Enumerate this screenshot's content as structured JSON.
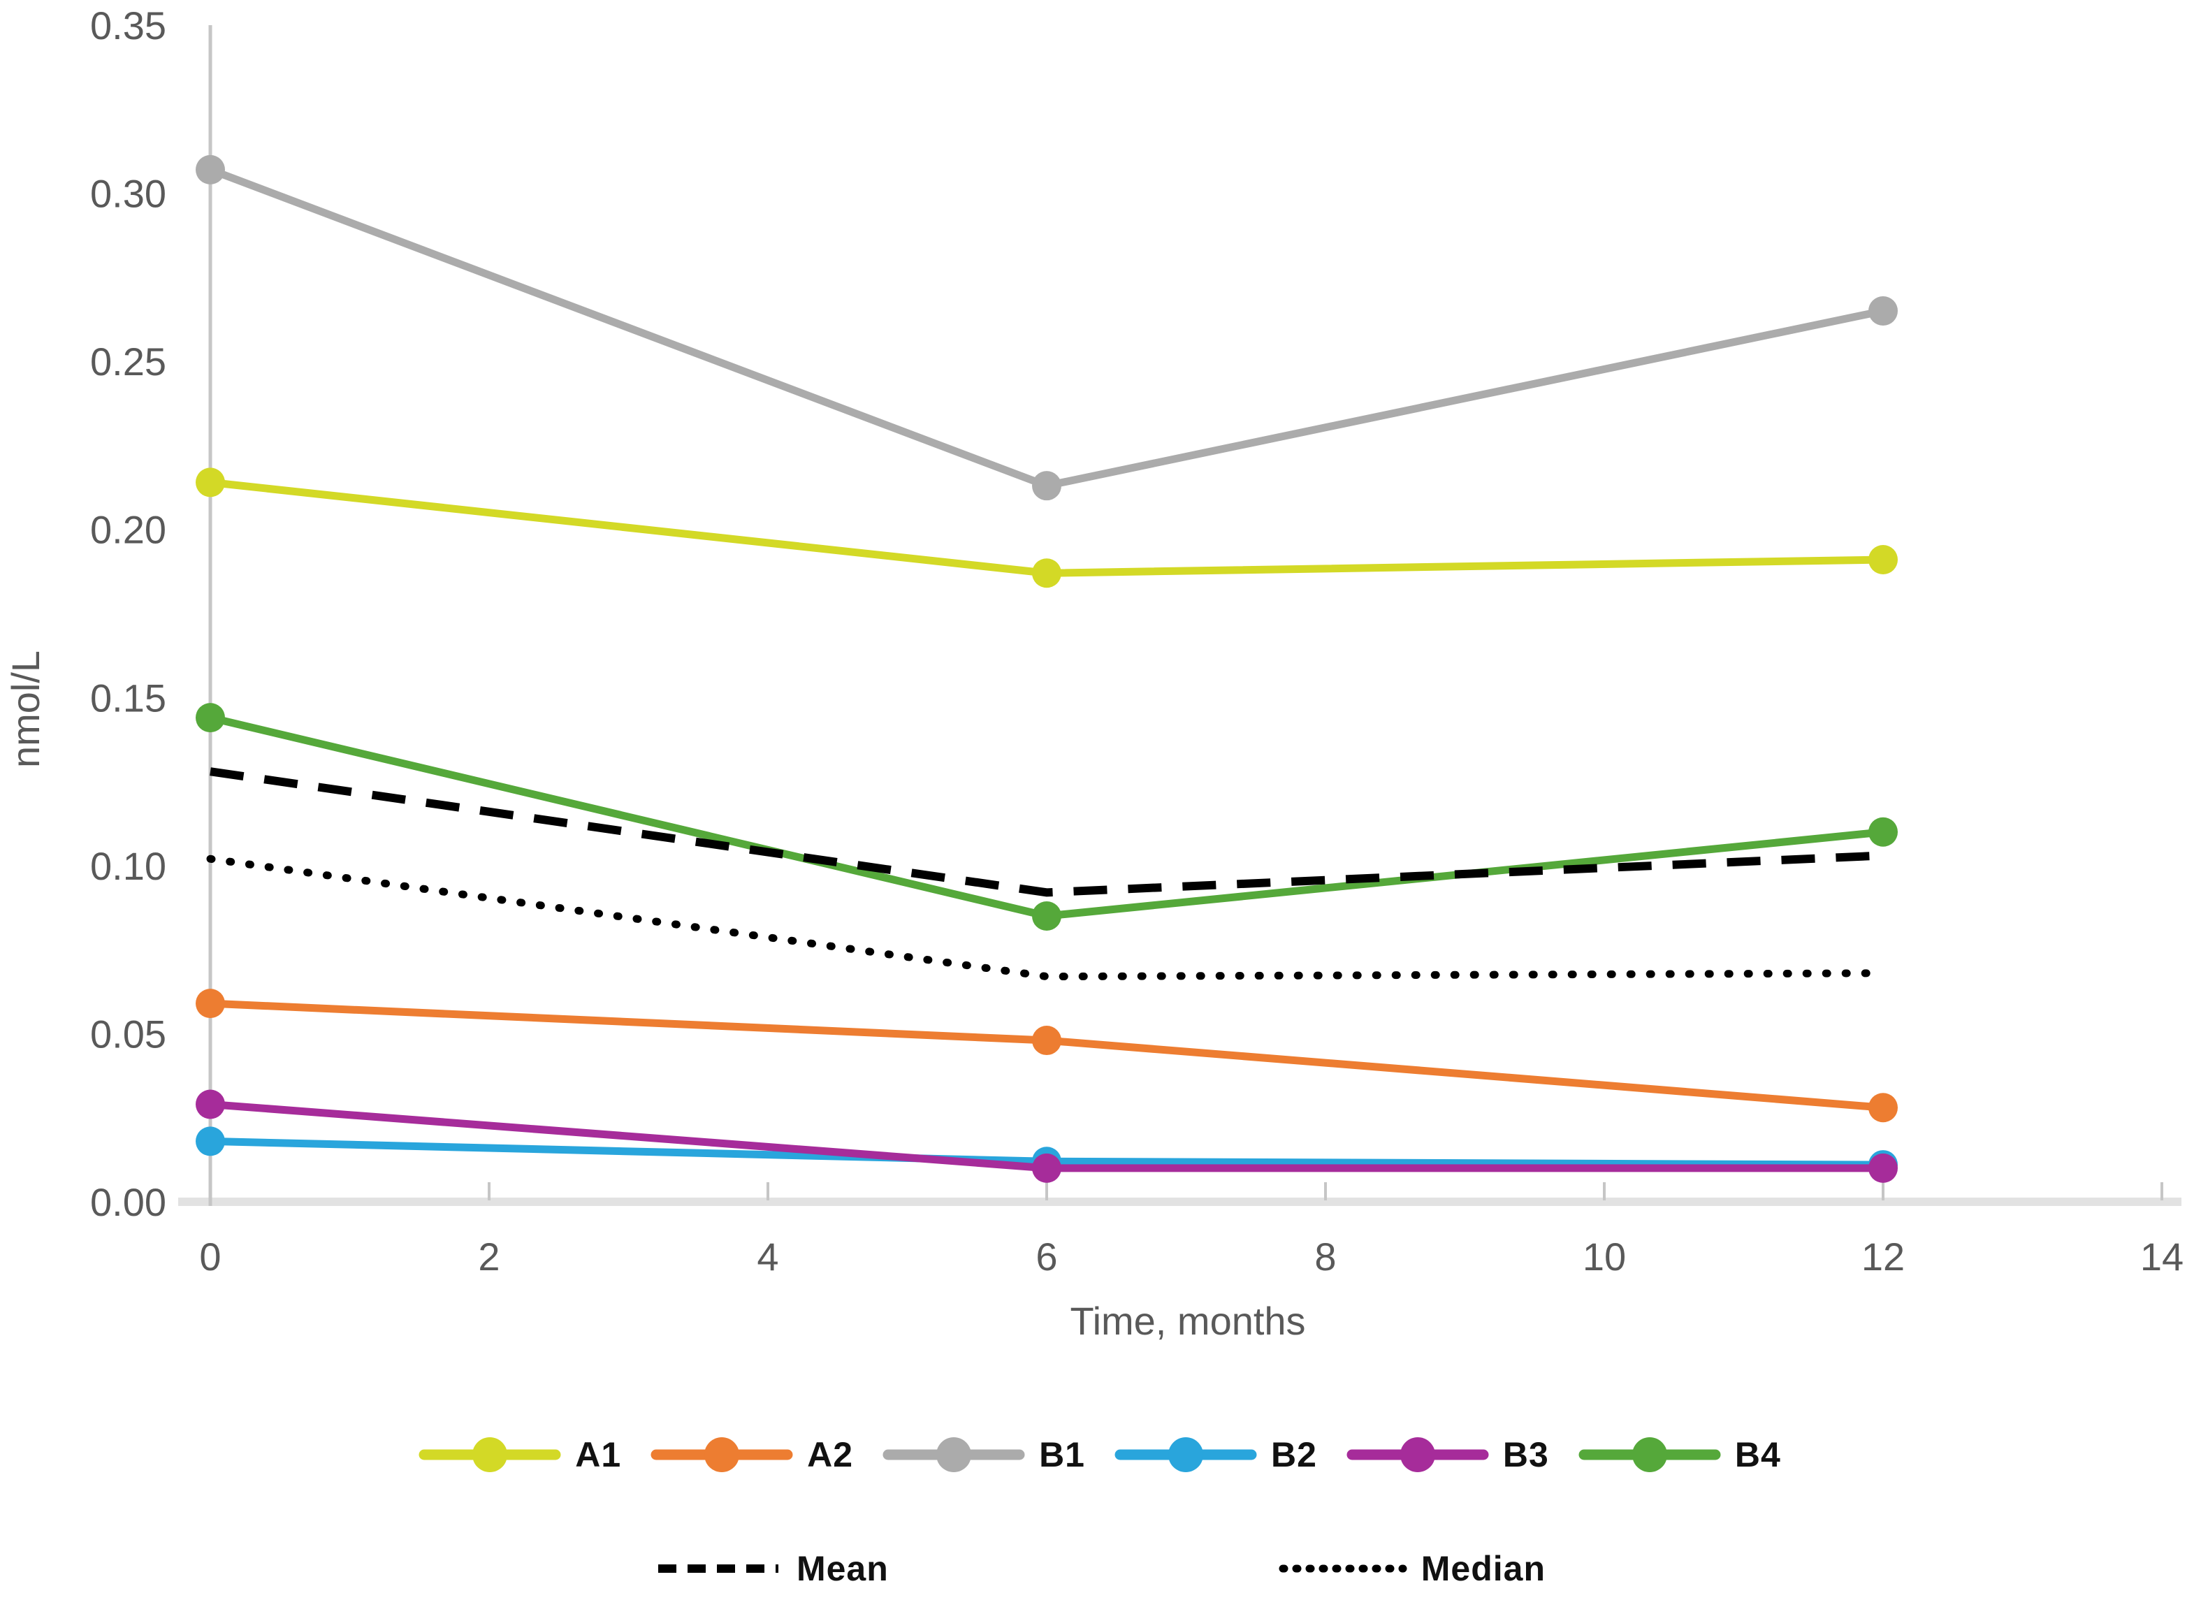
{
  "y_axis": {
    "label": "nmol/L",
    "ticks": [
      "0.35",
      "0.30",
      "0.25",
      "0.20",
      "0.15",
      "0.10",
      "0.05",
      "0.00"
    ],
    "tick_values": [
      0.35,
      0.3,
      0.25,
      0.2,
      0.15,
      0.1,
      0.05,
      0.0
    ]
  },
  "x_axis": {
    "label": "Time, months",
    "ticks": [
      "0",
      "2",
      "4",
      "6",
      "8",
      "10",
      "12",
      "14"
    ],
    "tick_values": [
      0,
      2,
      4,
      6,
      8,
      10,
      12,
      14
    ]
  },
  "colors": {
    "axis_text": "#595959",
    "y_axis_line": "#c6c6c6",
    "x_axis_line": "#e2e2e2",
    "tick_mark": "#c6c6c6",
    "stat_line": "#000000"
  },
  "chart_data": {
    "type": "line",
    "title": "",
    "xlabel": "Time, months",
    "ylabel": "nmol/L",
    "xlim": [
      0,
      14
    ],
    "ylim": [
      0,
      0.35
    ],
    "grid": false,
    "legend_position": "bottom",
    "x": [
      0,
      6,
      12
    ],
    "series": [
      {
        "name": "A1",
        "color": "#d3d926",
        "values": [
          0.214,
          0.187,
          0.191
        ]
      },
      {
        "name": "A2",
        "color": "#ed7d31",
        "values": [
          0.059,
          0.048,
          0.028
        ]
      },
      {
        "name": "B1",
        "color": "#ababab",
        "values": [
          0.307,
          0.213,
          0.265
        ]
      },
      {
        "name": "B2",
        "color": "#29a5dc",
        "values": [
          0.018,
          0.012,
          0.011
        ]
      },
      {
        "name": "B3",
        "color": "#a62c9a",
        "values": [
          0.029,
          0.01,
          0.01
        ]
      },
      {
        "name": "B4",
        "color": "#55a83a",
        "values": [
          0.144,
          0.085,
          0.11
        ]
      }
    ],
    "stat_series": [
      {
        "name": "Mean",
        "style": "dashed",
        "color": "#000000",
        "values": [
          0.128,
          0.092,
          0.103
        ]
      },
      {
        "name": "Median",
        "style": "dotted",
        "color": "#000000",
        "values": [
          0.102,
          0.067,
          0.068
        ]
      }
    ]
  }
}
